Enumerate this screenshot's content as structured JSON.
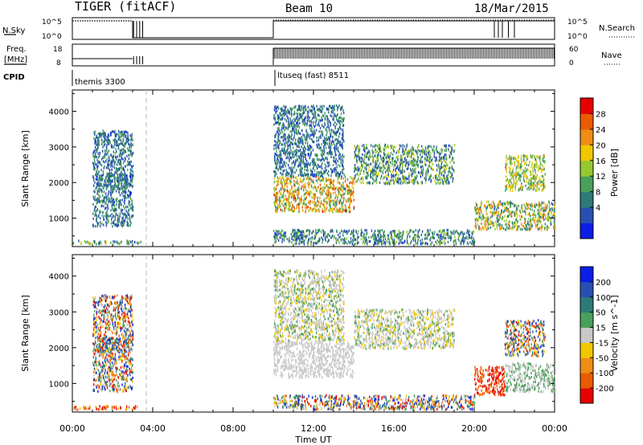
{
  "header": {
    "radar": "TIGER (fitACF)",
    "beam": "Beam 10",
    "date": "18/Mar/2015"
  },
  "aux": {
    "nsky_label": "N.Sky",
    "nsearch_label": "N.Search",
    "freq_label_1": "Freq.",
    "freq_label_2": "[MHz]",
    "nave_label": "Nave",
    "cpid_label": "CPID",
    "nsky_ticks": [
      "10^5",
      "10^0"
    ],
    "nsearch_ticks": [
      "10^5",
      "10^0"
    ],
    "freq_ticks": [
      "18",
      "8"
    ],
    "nave_ticks": [
      "60",
      "0"
    ],
    "cpid_1": "themis 3300",
    "cpid_2": "ltuseq (fast) 8511"
  },
  "colors": {
    "power": [
      "#0a1ee6",
      "#2850b4",
      "#2d7a78",
      "#4aa05a",
      "#96c832",
      "#f0c800",
      "#f08c14",
      "#ec5a00",
      "#e60000"
    ],
    "velocity": [
      "#e60000",
      "#ec5a00",
      "#f08c14",
      "#f0c800",
      "#c8c8c8",
      "#4aa05a",
      "#2d7a78",
      "#2850b4",
      "#0a1ee6"
    ]
  },
  "chart_data": [
    {
      "type": "heatmap",
      "panel": "power",
      "ylabel": "Slant Range [km]",
      "yticks": [
        1000,
        2000,
        3000,
        4000
      ],
      "ylim": [
        200,
        4600
      ],
      "xlim_hours": [
        0,
        24
      ],
      "colorbar_label": "Power [dB]",
      "colorbar_ticks": [
        "28",
        "24",
        "20",
        "16",
        "12",
        "8",
        "4"
      ],
      "scatter_regions": [
        {
          "t": [
            0.0,
            3.4
          ],
          "r": [
            300,
            400
          ],
          "level": [
            0.1,
            0.6
          ]
        },
        {
          "t": [
            1.2,
            3.0
          ],
          "r": [
            1900,
            2300
          ],
          "level": [
            0.1,
            0.4
          ]
        },
        {
          "t": [
            1.0,
            3.0
          ],
          "r": [
            800,
            3500
          ],
          "level": [
            0.1,
            0.4
          ]
        },
        {
          "t": [
            10.0,
            14.0
          ],
          "r": [
            1200,
            2200
          ],
          "level": [
            0.3,
            0.9
          ]
        },
        {
          "t": [
            10.0,
            11.5
          ],
          "r": [
            350,
            700
          ],
          "level": [
            0.1,
            0.5
          ]
        },
        {
          "t": [
            10.0,
            13.5
          ],
          "r": [
            2200,
            4200
          ],
          "level": [
            0.1,
            0.4
          ]
        },
        {
          "t": [
            14.0,
            19.0
          ],
          "r": [
            2000,
            3100
          ],
          "level": [
            0.1,
            0.6
          ]
        },
        {
          "t": [
            11.0,
            20.0
          ],
          "r": [
            300,
            700
          ],
          "level": [
            0.1,
            0.5
          ]
        },
        {
          "t": [
            20.0,
            24.0
          ],
          "r": [
            700,
            1500
          ],
          "level": [
            0.2,
            0.8
          ]
        },
        {
          "t": [
            21.5,
            23.5
          ],
          "r": [
            1800,
            2800
          ],
          "level": [
            0.3,
            0.7
          ]
        }
      ]
    },
    {
      "type": "heatmap",
      "panel": "velocity",
      "ylabel": "Slant Range [km]",
      "yticks": [
        1000,
        2000,
        3000,
        4000
      ],
      "ylim": [
        200,
        4600
      ],
      "xlim_hours": [
        0,
        24
      ],
      "xticks": [
        "00:00",
        "04:00",
        "08:00",
        "12:00",
        "16:00",
        "20:00",
        "00:00"
      ],
      "xlabel": "Time UT",
      "colorbar_label": "Velocity [m s^-1]",
      "colorbar_ticks": [
        "200",
        "100",
        "50",
        "15",
        "-15",
        "-50",
        "-100",
        "-200"
      ],
      "scatter_regions": [
        {
          "t": [
            0.0,
            3.4
          ],
          "r": [
            300,
            400
          ],
          "level": [
            0.0,
            0.4
          ]
        },
        {
          "t": [
            1.2,
            3.0
          ],
          "r": [
            1900,
            2300
          ],
          "level": [
            0.5,
            0.9
          ]
        },
        {
          "t": [
            1.0,
            3.0
          ],
          "r": [
            800,
            3500
          ],
          "level": [
            0.0,
            1.0
          ]
        },
        {
          "t": [
            10.0,
            14.0
          ],
          "r": [
            1200,
            2200
          ],
          "level": [
            0.45,
            0.55
          ]
        },
        {
          "t": [
            10.0,
            11.5
          ],
          "r": [
            350,
            700
          ],
          "level": [
            0.1,
            0.9
          ]
        },
        {
          "t": [
            10.0,
            13.5
          ],
          "r": [
            2200,
            4200
          ],
          "level": [
            0.4,
            0.6
          ]
        },
        {
          "t": [
            14.0,
            19.0
          ],
          "r": [
            2000,
            3100
          ],
          "level": [
            0.4,
            0.6
          ]
        },
        {
          "t": [
            11.0,
            20.0
          ],
          "r": [
            300,
            700
          ],
          "level": [
            0.0,
            1.0
          ]
        },
        {
          "t": [
            20.0,
            21.5
          ],
          "r": [
            700,
            1500
          ],
          "level": [
            0.0,
            0.25
          ]
        },
        {
          "t": [
            21.5,
            24.0
          ],
          "r": [
            800,
            1600
          ],
          "level": [
            0.45,
            0.65
          ]
        },
        {
          "t": [
            21.5,
            23.5
          ],
          "r": [
            1800,
            2800
          ],
          "level": [
            0.0,
            1.0
          ]
        }
      ]
    }
  ]
}
